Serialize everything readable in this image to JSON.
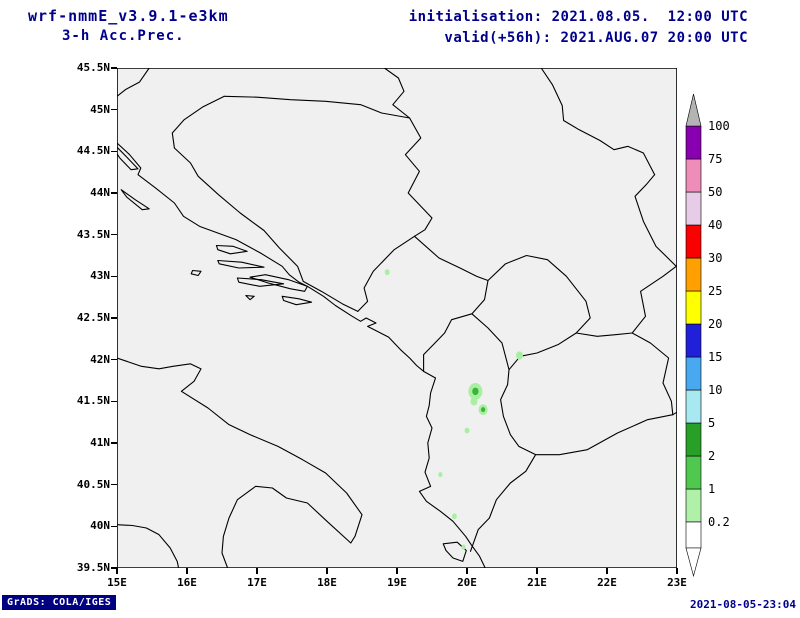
{
  "header": {
    "model": "wrf-nmmE_v3.9.1-e3km",
    "product": "3-h Acc.Prec.",
    "init": "initialisation: 2021.08.05.  12:00 UTC",
    "valid": "valid(+56h): 2021.AUG.07 20:00 UTC"
  },
  "map": {
    "lon_min": 15,
    "lon_max": 23,
    "lat_min": 39.5,
    "lat_max": 45.5,
    "lat_ticks": [
      "45.5N",
      "45N",
      "44.5N",
      "44N",
      "43.5N",
      "43N",
      "42.5N",
      "42N",
      "41.5N",
      "41N",
      "40.5N",
      "40N",
      "39.5N"
    ],
    "lon_ticks": [
      "15E",
      "16E",
      "17E",
      "18E",
      "19E",
      "20E",
      "21E",
      "22E",
      "23E"
    ],
    "background": "#f0f0f0"
  },
  "colorbar": {
    "levels": [
      "0.2",
      "1",
      "2",
      "5",
      "10",
      "15",
      "20",
      "25",
      "30",
      "40",
      "50",
      "75",
      "100"
    ],
    "segment_colors": [
      "#b0f0a8",
      "#50c850",
      "#28a028",
      "#a8e8f0",
      "#48a8f0",
      "#2020d8",
      "#ffff00",
      "#ffa000",
      "#fa0000",
      "#e6cce6",
      "#f08cb8",
      "#8800b0"
    ],
    "above_max_color": "#b4b4b4",
    "below_min_color": "#ffffff"
  },
  "spot_colors": {
    "light": "#a8f0a0",
    "medium": "#3cb43c"
  },
  "precip_spots": [
    {
      "lon": 18.86,
      "lat": 43.05,
      "r": 0.035,
      "level": "light"
    },
    {
      "lon": 20.75,
      "lat": 42.05,
      "r": 0.05,
      "level": "light"
    },
    {
      "lon": 20.12,
      "lat": 41.62,
      "r": 0.1,
      "level": "light"
    },
    {
      "lon": 20.12,
      "lat": 41.62,
      "r": 0.045,
      "level": "medium"
    },
    {
      "lon": 20.1,
      "lat": 41.5,
      "r": 0.05,
      "level": "light"
    },
    {
      "lon": 20.23,
      "lat": 41.4,
      "r": 0.065,
      "level": "light"
    },
    {
      "lon": 20.23,
      "lat": 41.4,
      "r": 0.03,
      "level": "medium"
    },
    {
      "lon": 20.0,
      "lat": 41.15,
      "r": 0.035,
      "level": "light"
    },
    {
      "lon": 19.62,
      "lat": 40.62,
      "r": 0.03,
      "level": "light"
    },
    {
      "lon": 19.82,
      "lat": 40.12,
      "r": 0.035,
      "level": "light"
    },
    {
      "lon": 19.95,
      "lat": 39.75,
      "r": 0.03,
      "level": "light"
    }
  ],
  "footer": {
    "left": "GrADS: COLA/IGES",
    "right": "2021-08-05-23:04"
  },
  "colors": {
    "title": "#00008b",
    "stamp_background": "#000080",
    "frame": "#000000",
    "map_background": "#f0f0f0"
  }
}
